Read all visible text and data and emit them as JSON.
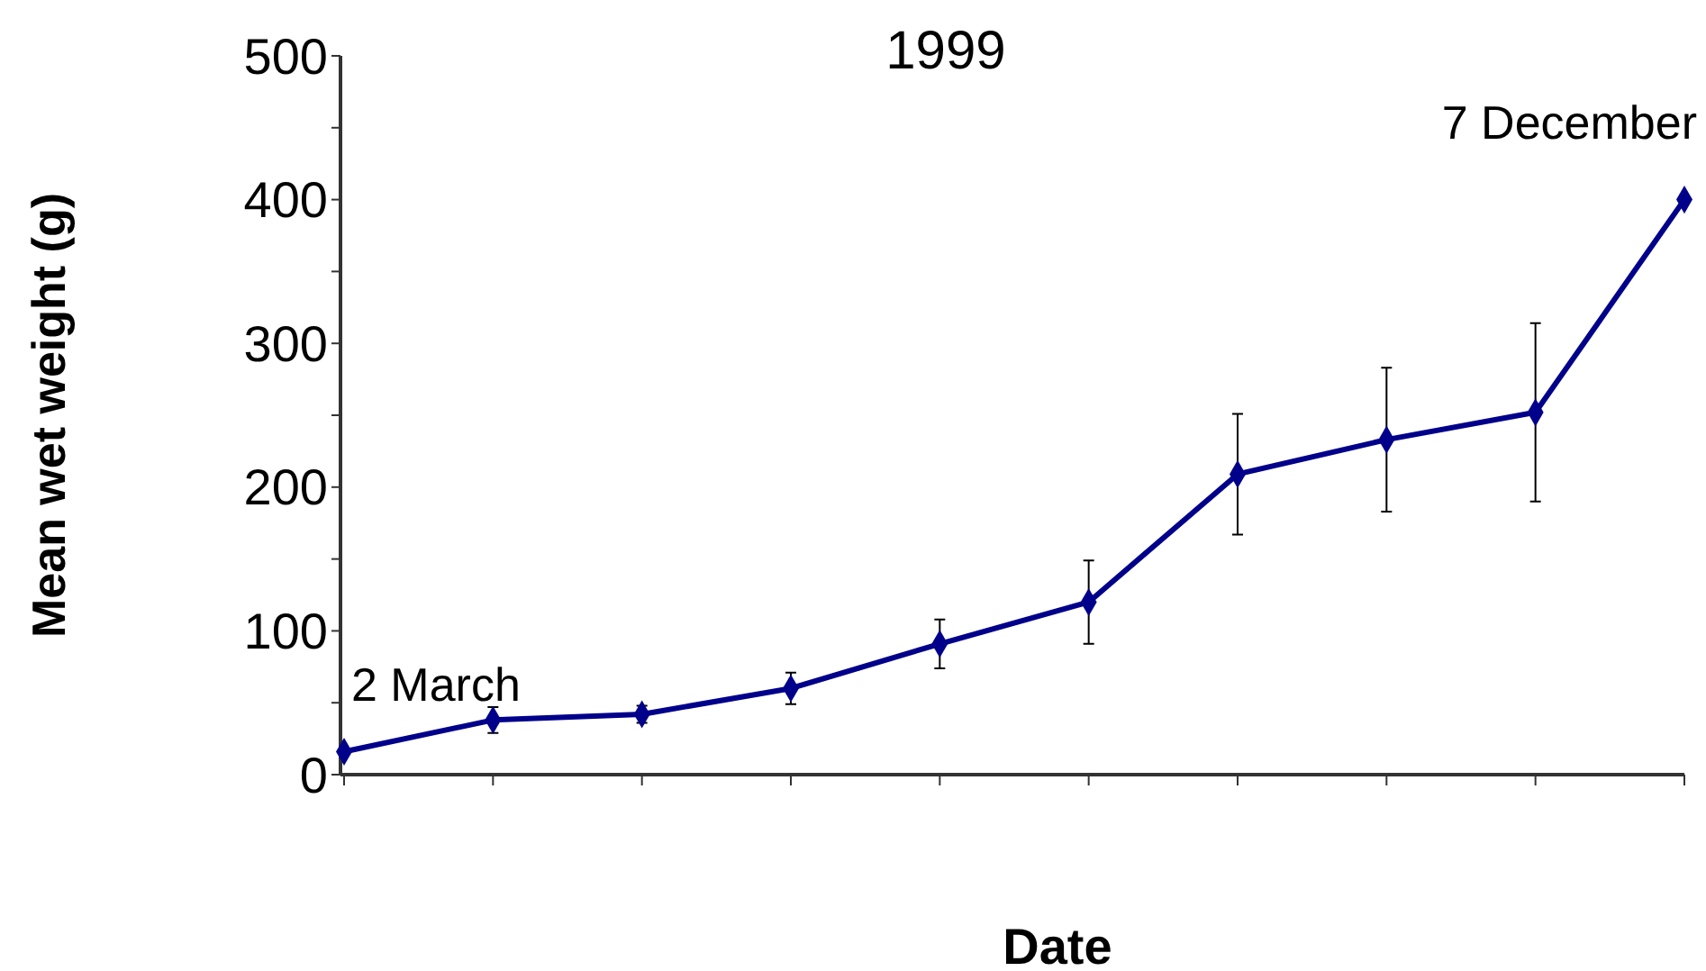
{
  "chart_data": {
    "type": "line",
    "title": "1999",
    "xlabel": "Date",
    "ylabel": "Mean wet weight (g)",
    "categories": [
      null,
      null,
      null,
      null,
      null,
      null,
      null,
      null,
      null,
      null
    ],
    "series": [
      {
        "color": "#00008b",
        "values": [
          16,
          38,
          42,
          60,
          91,
          120,
          209,
          233,
          252,
          400
        ],
        "errors": [
          null,
          9,
          6,
          11,
          17,
          29,
          42,
          50,
          62,
          null
        ]
      }
    ],
    "ylim": [
      0,
      500
    ],
    "yticks": [
      0,
      {
        "value": 50,
        "label": null
      },
      100,
      {
        "value": 150,
        "label": null
      },
      200,
      {
        "value": 250,
        "label": null
      },
      300,
      {
        "value": 350,
        "label": null
      },
      400,
      {
        "value": 450,
        "label": null
      },
      500
    ],
    "marker": "diamond",
    "line_style": "solid",
    "annotations": [
      "2 March",
      "7 December"
    ]
  }
}
